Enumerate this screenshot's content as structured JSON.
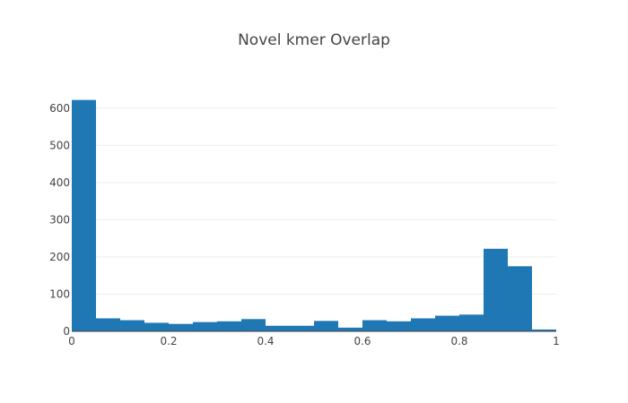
{
  "chart_data": {
    "type": "bar",
    "title": "Novel kmer Overlap",
    "xlabel": "",
    "ylabel": "",
    "bin_width": 0.05,
    "x": [
      0,
      0.05,
      0.1,
      0.15,
      0.2,
      0.25,
      0.3,
      0.35,
      0.4,
      0.45,
      0.5,
      0.55,
      0.6,
      0.65,
      0.7,
      0.75,
      0.8,
      0.85,
      0.9,
      0.95
    ],
    "values": [
      622,
      35,
      30,
      23,
      20,
      25,
      27,
      33,
      15,
      15,
      28,
      10,
      30,
      27,
      35,
      42,
      45,
      222,
      175,
      5
    ],
    "xlim": [
      0,
      1
    ],
    "ylim": [
      0,
      650
    ],
    "xticks": [
      0,
      0.2,
      0.4,
      0.6,
      0.8,
      1
    ],
    "xtick_labels": [
      "0",
      "0.2",
      "0.4",
      "0.6",
      "0.8",
      "1"
    ],
    "yticks": [
      0,
      100,
      200,
      300,
      400,
      500,
      600
    ],
    "ytick_labels": [
      "0",
      "100",
      "200",
      "300",
      "400",
      "500",
      "600"
    ],
    "grid": true,
    "bar_color": "#1f77b4"
  }
}
